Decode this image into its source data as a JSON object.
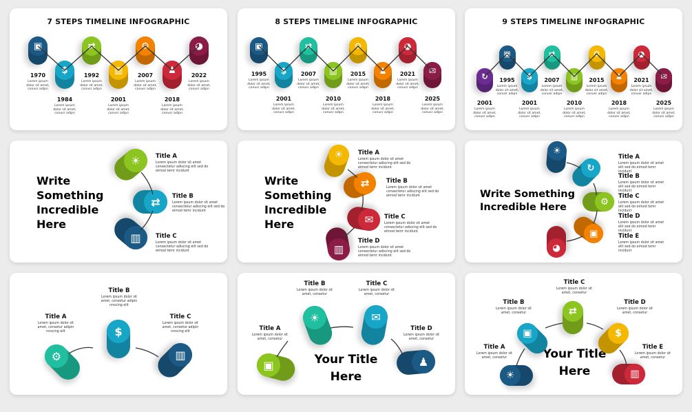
{
  "colors": {
    "navy": "#1c5a86",
    "cyan": "#17a6c8",
    "teal": "#1fbf9f",
    "green": "#8cc420",
    "yellow": "#f5b800",
    "orange": "#f28200",
    "red": "#cc2a3a",
    "maroon": "#8b1c45",
    "purple": "#6b2d92"
  },
  "timelines": [
    {
      "title": "7 STEPS TIMELINE INFOGRAPHIC",
      "steps": [
        {
          "year": "1970",
          "color": "navy",
          "icon": "briefcase-icon"
        },
        {
          "year": "1984",
          "color": "cyan",
          "icon": "dollar-icon"
        },
        {
          "year": "1992",
          "color": "green",
          "icon": "handshake-icon"
        },
        {
          "year": "2001",
          "color": "yellow",
          "icon": "bar-chart-icon"
        },
        {
          "year": "2007",
          "color": "orange",
          "icon": "gear-icon"
        },
        {
          "year": "2018",
          "color": "red",
          "icon": "people-icon"
        },
        {
          "year": "2022",
          "color": "maroon",
          "icon": "pie-chart-icon"
        }
      ]
    },
    {
      "title": "8 STEPS TIMELINE INFOGRAPHIC",
      "steps": [
        {
          "year": "1995",
          "color": "navy",
          "icon": "briefcase-icon"
        },
        {
          "year": "2001",
          "color": "cyan",
          "icon": "dollar-icon"
        },
        {
          "year": "2007",
          "color": "teal",
          "icon": "handshake-icon"
        },
        {
          "year": "2010",
          "color": "green",
          "icon": "bar-chart-icon"
        },
        {
          "year": "2015",
          "color": "yellow",
          "icon": "gear-icon"
        },
        {
          "year": "2018",
          "color": "orange",
          "icon": "people-icon"
        },
        {
          "year": "2021",
          "color": "red",
          "icon": "pie-chart-icon"
        },
        {
          "year": "2025",
          "color": "maroon",
          "icon": "mail-icon"
        }
      ]
    },
    {
      "title": "9 STEPS TIMELINE INFOGRAPHIC",
      "steps": [
        {
          "year": "2001",
          "color": "purple",
          "icon": "cycle-icon"
        },
        {
          "year": "1995",
          "color": "navy",
          "icon": "briefcase-icon"
        },
        {
          "year": "2001",
          "color": "cyan",
          "icon": "dollar-icon"
        },
        {
          "year": "2007",
          "color": "teal",
          "icon": "handshake-icon"
        },
        {
          "year": "2010",
          "color": "green",
          "icon": "bar-chart-icon"
        },
        {
          "year": "2015",
          "color": "yellow",
          "icon": "gear-icon"
        },
        {
          "year": "2018",
          "color": "orange",
          "icon": "people-icon"
        },
        {
          "year": "2021",
          "color": "red",
          "icon": "pie-chart-icon"
        },
        {
          "year": "2025",
          "color": "maroon",
          "icon": "mail-icon"
        }
      ]
    }
  ],
  "timeline_lorem": "Lorem ipsum dolor sit amet, conusr adipn",
  "lorem_long": "Lorem ipsum dolor sit amet consectetur adiscing elit sed do eimod temr incidunt",
  "lorem_short": "Lorem ipsum dolor sit amet elit sed do eimod temr incidunt",
  "lorem_center": "Lorem ipsum dolor sit amet, consetur adipin nnscing elit",
  "lorem_center_short": "Lorem ipsum dolor sit amet, consetur",
  "headline_write": "Write Something Incredible Here",
  "headline_your": "Your Title Here",
  "diagrams": [
    {
      "items": [
        {
          "title": "Title A",
          "color": "green",
          "icon": "lightbulb-icon"
        },
        {
          "title": "Title B",
          "color": "cyan",
          "icon": "handshake-icon"
        },
        {
          "title": "Title C",
          "color": "navy",
          "icon": "bar-chart-icon"
        }
      ]
    },
    {
      "items": [
        {
          "title": "Title A",
          "color": "yellow",
          "icon": "lightbulb-icon"
        },
        {
          "title": "Title B",
          "color": "orange",
          "icon": "handshake-icon"
        },
        {
          "title": "Title C",
          "color": "red",
          "icon": "mail-icon"
        },
        {
          "title": "Title D",
          "color": "maroon",
          "icon": "bar-chart-icon"
        }
      ]
    },
    {
      "items": [
        {
          "title": "Title A",
          "color": "navy",
          "icon": "lightbulb-icon"
        },
        {
          "title": "Title B",
          "color": "cyan",
          "icon": "cycle-icon"
        },
        {
          "title": "Title C",
          "color": "green",
          "icon": "gear-icon"
        },
        {
          "title": "Title D",
          "color": "orange",
          "icon": "briefcase-icon"
        },
        {
          "title": "Title E",
          "color": "red",
          "icon": "pie-chart-icon"
        }
      ]
    },
    {
      "items": [
        {
          "title": "Title A",
          "color": "teal",
          "icon": "gear-icon"
        },
        {
          "title": "Title B",
          "color": "cyan",
          "icon": "dollar-icon"
        },
        {
          "title": "Title C",
          "color": "navy",
          "icon": "bar-chart-icon"
        }
      ]
    },
    {
      "items": [
        {
          "title": "Title A",
          "color": "green",
          "icon": "briefcase-icon"
        },
        {
          "title": "Title B",
          "color": "teal",
          "icon": "lightbulb-icon"
        },
        {
          "title": "Title C",
          "color": "cyan",
          "icon": "mail-icon"
        },
        {
          "title": "Title D",
          "color": "navy",
          "icon": "people-icon"
        }
      ]
    },
    {
      "items": [
        {
          "title": "Title A",
          "color": "navy",
          "icon": "lightbulb-icon"
        },
        {
          "title": "Title B",
          "color": "cyan",
          "icon": "briefcase-icon"
        },
        {
          "title": "Title C",
          "color": "green",
          "icon": "handshake-icon"
        },
        {
          "title": "Title D",
          "color": "yellow",
          "icon": "dollar-icon"
        },
        {
          "title": "Title E",
          "color": "red",
          "icon": "bar-chart-icon"
        }
      ]
    }
  ]
}
